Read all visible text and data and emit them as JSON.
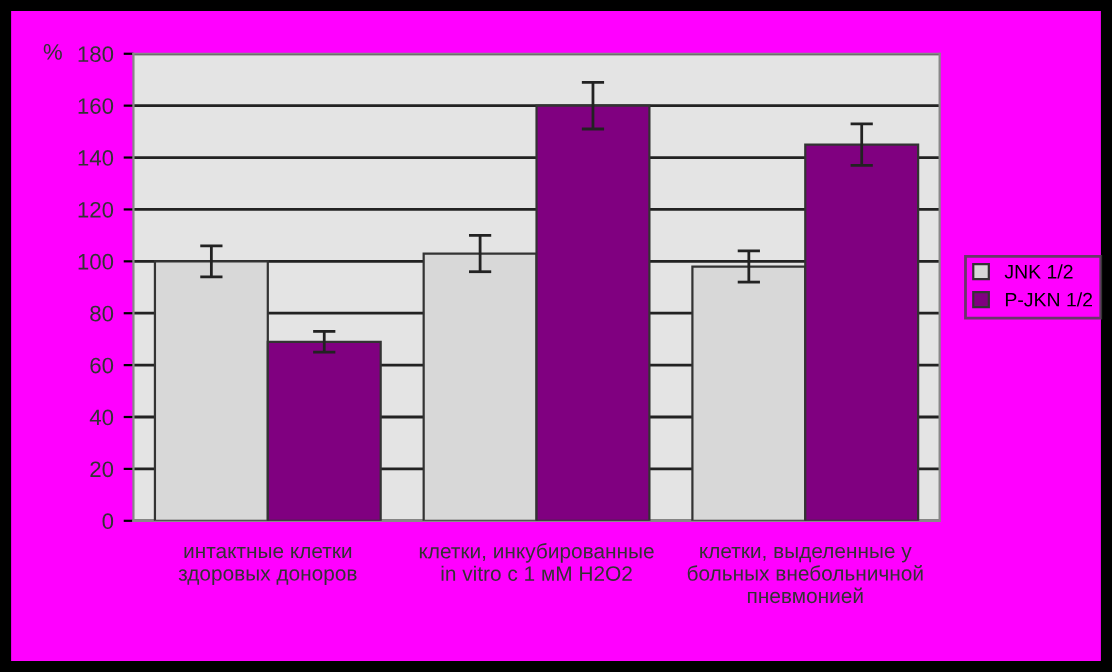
{
  "chart_data": {
    "type": "bar",
    "ylabel": "%",
    "categories": [
      "интактные клетки\nздоровых доноров",
      "клетки, инкубированные\nin vitro с 1 мМ H2O2",
      "клетки, выделенные у\nбольных внебольничной\nпневмонией"
    ],
    "series": [
      {
        "name": "JNK 1/2",
        "color": "#d8d8d8",
        "values": [
          100,
          103,
          98
        ],
        "errors": [
          6,
          7,
          6
        ]
      },
      {
        "name": "P-JKN 1/2",
        "color": "#800080",
        "values": [
          69,
          160,
          145
        ],
        "errors": [
          4,
          9,
          8
        ]
      }
    ],
    "ylim": [
      0,
      180
    ],
    "yticks": [
      0,
      20,
      40,
      60,
      80,
      100,
      120,
      140,
      160,
      180
    ],
    "grid": "y",
    "legend": "right"
  }
}
